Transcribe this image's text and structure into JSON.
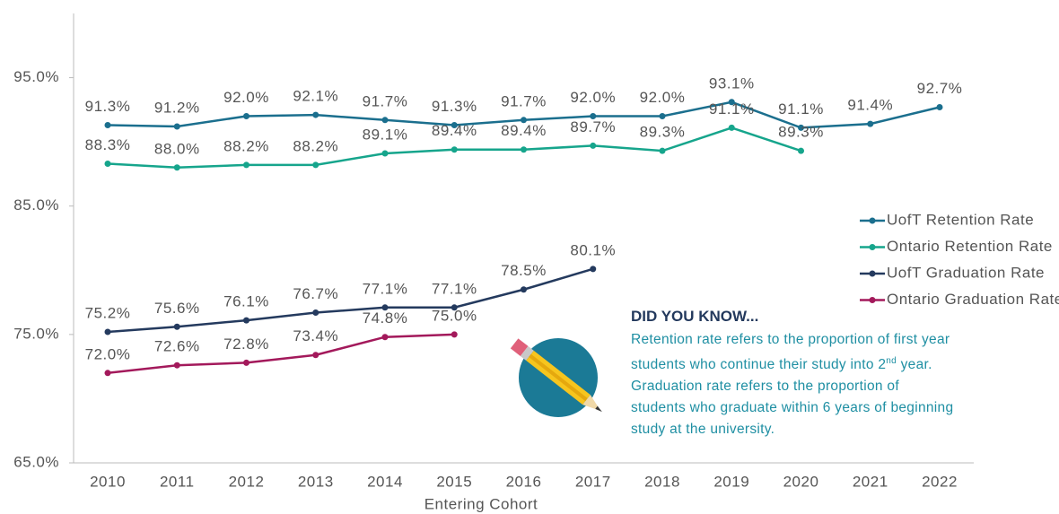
{
  "chart_data": {
    "type": "line",
    "x_label": "Entering Cohort",
    "categories": [
      "2010",
      "2011",
      "2012",
      "2013",
      "2014",
      "2015",
      "2016",
      "2017",
      "2018",
      "2019",
      "2020",
      "2021",
      "2022"
    ],
    "ylim": [
      65,
      100
    ],
    "yticks": [
      {
        "value": 65,
        "label": "65.0%"
      },
      {
        "value": 75,
        "label": "75.0%"
      },
      {
        "value": 85,
        "label": "85.0%"
      },
      {
        "value": 95,
        "label": "95.0%"
      }
    ],
    "grid": false,
    "legend": "right",
    "series": [
      {
        "name": "UofT Retention Rate",
        "color": "#1b6f8e",
        "values": [
          91.3,
          91.2,
          92.0,
          92.1,
          91.7,
          91.3,
          91.7,
          92.0,
          92.0,
          93.1,
          91.1,
          91.4,
          92.7
        ],
        "value_labels": [
          "91.3%",
          "91.2%",
          "92.0%",
          "92.1%",
          "91.7%",
          "91.3%",
          "91.7%",
          "92.0%",
          "92.0%",
          "93.1%",
          "91.1%",
          "91.4%",
          "92.7%"
        ]
      },
      {
        "name": "Ontario Retention Rate",
        "color": "#16a58c",
        "values": [
          88.3,
          88.0,
          88.2,
          88.2,
          89.1,
          89.4,
          89.4,
          89.7,
          89.3,
          91.1,
          89.3,
          null,
          null
        ],
        "value_labels": [
          "88.3%",
          "88.0%",
          "88.2%",
          "88.2%",
          "89.1%",
          "89.4%",
          "89.4%",
          "89.7%",
          "89.3%",
          "91.1%",
          "89.3%",
          null,
          null
        ]
      },
      {
        "name": "UofT Graduation Rate",
        "color": "#243a5e",
        "values": [
          75.2,
          75.6,
          76.1,
          76.7,
          77.1,
          77.1,
          78.5,
          80.1,
          null,
          null,
          null,
          null,
          null
        ],
        "value_labels": [
          "75.2%",
          "75.6%",
          "76.1%",
          "76.7%",
          "77.1%",
          "77.1%",
          "78.5%",
          "80.1%",
          null,
          null,
          null,
          null,
          null
        ]
      },
      {
        "name": "Ontario Graduation Rate",
        "color": "#a3195b",
        "values": [
          72.0,
          72.6,
          72.8,
          73.4,
          74.8,
          75.0,
          null,
          null,
          null,
          null,
          null,
          null,
          null
        ],
        "value_labels": [
          "72.0%",
          "72.6%",
          "72.8%",
          "73.4%",
          "74.8%",
          "75.0%",
          null,
          null,
          null,
          null,
          null,
          null,
          null
        ]
      }
    ],
    "callout": {
      "title": "DID YOU KNOW...",
      "text": [
        "Retention rate refers to the proportion of first year students who continue their study into 2",
        "nd",
        " year. Graduation rate refers to the proportion of students who graduate within 6 years of beginning study at the university."
      ]
    }
  }
}
